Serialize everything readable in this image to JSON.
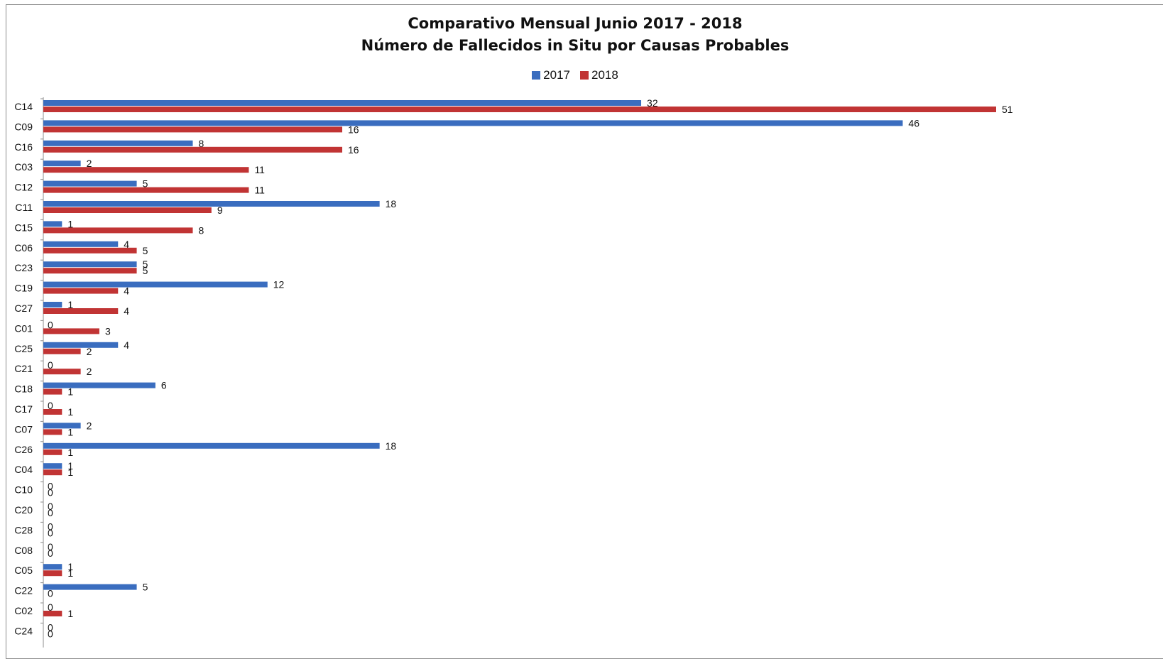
{
  "chart_data": {
    "type": "bar",
    "orientation": "horizontal",
    "title": "Comparativo Mensual Junio 2017 - 2018",
    "subtitle": "Número de Fallecidos in Situ por Causas Probables",
    "xlabel": "",
    "ylabel": "",
    "grid": false,
    "legend_position": "top",
    "xlim": [
      0,
      51
    ],
    "categories": [
      "C14",
      "C09",
      "C16",
      "C03",
      "C12",
      "C11",
      "C15",
      "C06",
      "C23",
      "C19",
      "C27",
      "C01",
      "C25",
      "C21",
      "C18",
      "C17",
      "C07",
      "C26",
      "C04",
      "C10",
      "C20",
      "C28",
      "C08",
      "C05",
      "C22",
      "C02",
      "C24"
    ],
    "series": [
      {
        "name": "2017",
        "color": "#3a6dbf",
        "values": [
          32,
          46,
          8,
          2,
          5,
          18,
          1,
          4,
          5,
          12,
          1,
          0,
          4,
          0,
          6,
          0,
          2,
          18,
          1,
          0,
          0,
          0,
          0,
          1,
          5,
          0,
          0
        ]
      },
      {
        "name": "2018",
        "color": "#c13434",
        "values": [
          51,
          16,
          16,
          11,
          11,
          9,
          8,
          5,
          5,
          4,
          4,
          3,
          2,
          2,
          1,
          1,
          1,
          1,
          1,
          0,
          0,
          0,
          0,
          1,
          0,
          1,
          0
        ]
      }
    ]
  }
}
